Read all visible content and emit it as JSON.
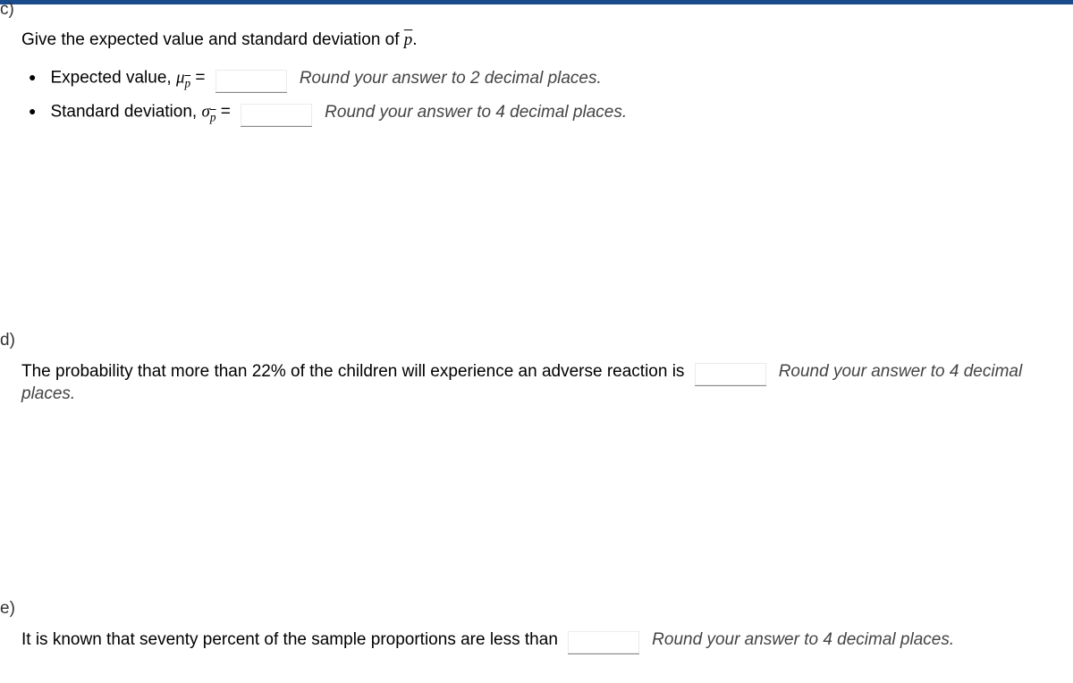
{
  "top_bar_color": "#1a4b8c",
  "parts": {
    "c": {
      "label": "c)",
      "prompt_prefix": "Give the expected value and standard deviation of ",
      "prompt_symbol": "p",
      "prompt_suffix": ".",
      "items": [
        {
          "label_text": "Expected value, ",
          "symbol_greek": "μ",
          "symbol_sub": "p̄",
          "equals": " = ",
          "hint": "Round your answer to 2 decimal places."
        },
        {
          "label_text": "Standard deviation, ",
          "symbol_greek": "σ",
          "symbol_sub": "p̄",
          "equals": " = ",
          "hint": "Round your answer to 4 decimal places."
        }
      ]
    },
    "d": {
      "label": "d)",
      "text_before": "The probability that more than ",
      "percent": "22%",
      "text_after": " of the children will experience an adverse reaction is ",
      "hint": "Round your answer to 4 decimal places."
    },
    "e": {
      "label": "e)",
      "text": "It is known that seventy percent of the sample proportions are less than ",
      "hint": "Round your answer to 4 decimal places."
    }
  },
  "styles": {
    "body_font_size": 19,
    "hint_color": "#444444",
    "text_color": "#000000",
    "input_border_color": "#888888",
    "background_color": "#ffffff"
  }
}
